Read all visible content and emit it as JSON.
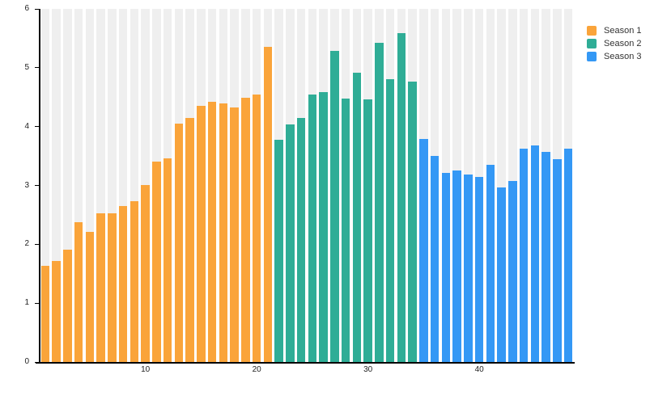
{
  "chart_data": {
    "type": "bar",
    "title": "",
    "xlabel": "",
    "ylabel": "",
    "ylim": [
      0,
      6
    ],
    "yticks": [
      0,
      1,
      2,
      3,
      4,
      5,
      6
    ],
    "xticks": [
      10,
      20,
      30,
      40
    ],
    "x_range": [
      1,
      48
    ],
    "grid": "vertical-band-per-category",
    "legend_position": "top-right-outside",
    "band_color": "#efefef",
    "axis_color": "#000000",
    "tick_label_color": "#222222",
    "series": [
      {
        "name": "Season 1",
        "color": "#faa43a",
        "x_start": 1,
        "values": [
          1.64,
          1.71,
          1.91,
          2.37,
          2.21,
          2.53,
          2.53,
          2.65,
          2.73,
          3.01,
          3.41,
          3.46,
          4.05,
          4.15,
          4.35,
          4.42,
          4.39,
          4.33,
          4.49,
          4.54,
          5.36
        ]
      },
      {
        "name": "Season 2",
        "color": "#2fad96",
        "x_start": 22,
        "values": [
          3.77,
          4.04,
          4.15,
          4.54,
          4.59,
          5.28,
          4.48,
          4.92,
          4.46,
          5.42,
          4.8,
          5.59,
          4.76
        ]
      },
      {
        "name": "Season 3",
        "color": "#3498f5",
        "x_start": 35,
        "values": [
          3.79,
          3.5,
          3.21,
          3.26,
          3.19,
          3.15,
          3.35,
          2.96,
          3.08,
          3.62,
          3.68,
          3.57,
          3.45,
          3.63
        ]
      }
    ]
  }
}
